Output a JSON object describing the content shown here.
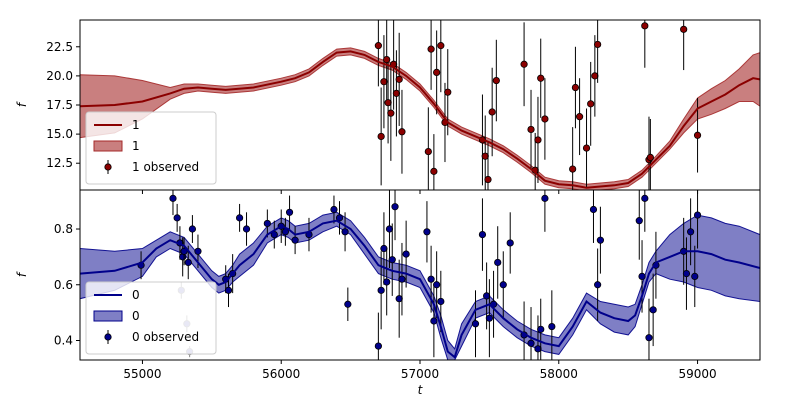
{
  "chart_data": [
    {
      "type": "line",
      "panel": "top",
      "xlabel": "",
      "ylabel": "f",
      "xlim": [
        54550,
        59450
      ],
      "ylim": [
        10.2,
        24.8
      ],
      "yticks": [
        12.5,
        15.0,
        17.5,
        20.0,
        22.5
      ],
      "ytick_labels": [
        "12.5",
        "15.0",
        "17.5",
        "20.0",
        "22.5"
      ],
      "xticks": [
        55000,
        56000,
        57000,
        58000,
        59000
      ],
      "grid": false,
      "legend_position": "lower-left",
      "legend": [
        "1",
        "1",
        "1 observed"
      ],
      "colors": {
        "line": "#8b0000",
        "band": "#a52a2a",
        "band_alpha": 0.6,
        "marker": "#8b0000"
      },
      "series": [
        {
          "name": "1",
          "role": "model",
          "x": [
            54550,
            54800,
            55000,
            55200,
            55300,
            55400,
            55500,
            55600,
            55800,
            56000,
            56100,
            56200,
            56300,
            56400,
            56500,
            56600,
            56700,
            56800,
            56900,
            57000,
            57100,
            57200,
            57300,
            57400,
            57500,
            57600,
            57700,
            57800,
            57900,
            58000,
            58100,
            58200,
            58300,
            58400,
            58500,
            58600,
            58700,
            58800,
            58900,
            59000,
            59100,
            59200,
            59300,
            59400,
            59450
          ],
          "y": [
            17.4,
            17.5,
            17.8,
            18.5,
            18.9,
            19.0,
            18.9,
            18.8,
            19.0,
            19.5,
            19.8,
            20.3,
            21.2,
            22.0,
            22.1,
            21.8,
            21.2,
            20.8,
            20.0,
            19.0,
            17.6,
            16.0,
            15.3,
            14.8,
            14.3,
            13.7,
            12.9,
            12.0,
            11.0,
            10.7,
            10.6,
            10.4,
            10.5,
            10.6,
            10.8,
            11.6,
            12.8,
            14.0,
            15.7,
            17.2,
            17.8,
            18.4,
            19.2,
            19.8,
            19.7
          ],
          "lower": [
            14.7,
            15.1,
            16.3,
            18.0,
            18.5,
            18.7,
            18.6,
            18.5,
            18.7,
            19.2,
            19.5,
            20.0,
            20.9,
            21.7,
            21.8,
            21.5,
            20.9,
            20.5,
            19.7,
            18.7,
            17.3,
            15.7,
            15.0,
            14.5,
            14.0,
            13.4,
            12.6,
            11.7,
            10.7,
            10.4,
            10.3,
            10.1,
            10.2,
            10.3,
            10.5,
            11.3,
            12.5,
            13.7,
            15.1,
            16.3,
            16.7,
            17.2,
            17.8,
            17.8,
            17.4
          ],
          "upper": [
            20.1,
            20.0,
            19.6,
            19.0,
            19.3,
            19.3,
            19.2,
            19.1,
            19.3,
            19.8,
            20.1,
            20.6,
            21.5,
            22.3,
            22.4,
            22.1,
            21.5,
            21.1,
            20.3,
            19.3,
            17.9,
            16.3,
            15.6,
            15.1,
            14.6,
            14.0,
            13.2,
            12.3,
            11.3,
            11.0,
            10.9,
            10.7,
            10.8,
            10.9,
            11.1,
            11.9,
            13.1,
            14.4,
            16.3,
            18.1,
            18.9,
            19.6,
            20.6,
            21.8,
            22.0
          ]
        },
        {
          "name": "1 observed",
          "role": "observed",
          "x": [
            56700,
            56720,
            56740,
            56760,
            56770,
            56790,
            56810,
            56830,
            56850,
            56870,
            57060,
            57080,
            57100,
            57120,
            57150,
            57180,
            57200,
            57450,
            57470,
            57490,
            57520,
            57550,
            57750,
            57800,
            57830,
            57850,
            57870,
            57900,
            58100,
            58120,
            58150,
            58200,
            58230,
            58260,
            58280,
            58620,
            58650,
            58660,
            58900,
            59000
          ],
          "y": [
            22.6,
            14.8,
            19.5,
            21.4,
            17.7,
            16.8,
            21.0,
            18.5,
            19.7,
            15.2,
            13.5,
            22.3,
            11.8,
            20.3,
            22.6,
            16.0,
            18.6,
            14.5,
            13.1,
            11.1,
            16.9,
            19.6,
            21.0,
            15.4,
            11.9,
            14.5,
            19.8,
            16.3,
            12.0,
            19.0,
            16.5,
            13.8,
            17.6,
            20.0,
            22.7,
            24.3,
            12.8,
            13.0,
            24.0,
            14.9
          ],
          "yerr": [
            3.5,
            4.2,
            4.0,
            3.8,
            3.5,
            4.1,
            3.9,
            3.7,
            4.0,
            3.6,
            3.8,
            3.5,
            3.2,
            3.6,
            4.0,
            3.4,
            3.7,
            3.9,
            3.5,
            3.2,
            3.8,
            3.5,
            3.6,
            3.4,
            3.2,
            3.7,
            3.4,
            3.5,
            3.6,
            3.5,
            3.3,
            3.4,
            3.6,
            3.5,
            3.3,
            3.6,
            3.7,
            3.3,
            3.5,
            3.2
          ]
        }
      ]
    },
    {
      "type": "line",
      "panel": "bottom",
      "xlabel": "t",
      "ylabel": "f",
      "xlim": [
        54550,
        59450
      ],
      "ylim": [
        0.33,
        0.94
      ],
      "yticks": [
        0.4,
        0.6,
        0.8
      ],
      "ytick_labels": [
        "0.4",
        "0.6",
        "0.8"
      ],
      "xticks": [
        55000,
        56000,
        57000,
        58000,
        59000
      ],
      "xtick_labels": [
        "55000",
        "56000",
        "57000",
        "58000",
        "59000"
      ],
      "grid": false,
      "legend_position": "lower-left",
      "legend": [
        "0",
        "0",
        "0 observed"
      ],
      "colors": {
        "line": "#00008b",
        "band": "#00008b",
        "band_alpha": 0.5,
        "marker": "#00008b"
      },
      "series": [
        {
          "name": "0",
          "role": "model",
          "x": [
            54550,
            54800,
            55000,
            55100,
            55200,
            55300,
            55400,
            55500,
            55550,
            55600,
            55650,
            55700,
            55800,
            55900,
            56000,
            56050,
            56100,
            56200,
            56300,
            56400,
            56500,
            56600,
            56700,
            56800,
            56900,
            57000,
            57100,
            57150,
            57200,
            57250,
            57300,
            57400,
            57500,
            57600,
            57700,
            57800,
            57900,
            58000,
            58100,
            58200,
            58300,
            58400,
            58500,
            58550,
            58600,
            58650,
            58700,
            58800,
            58900,
            59000,
            59100,
            59200,
            59300,
            59450
          ],
          "y": [
            0.64,
            0.65,
            0.68,
            0.73,
            0.76,
            0.74,
            0.68,
            0.62,
            0.6,
            0.61,
            0.64,
            0.67,
            0.71,
            0.78,
            0.81,
            0.8,
            0.78,
            0.79,
            0.82,
            0.83,
            0.8,
            0.74,
            0.67,
            0.65,
            0.64,
            0.62,
            0.53,
            0.45,
            0.36,
            0.34,
            0.42,
            0.51,
            0.53,
            0.48,
            0.44,
            0.41,
            0.39,
            0.38,
            0.45,
            0.54,
            0.5,
            0.48,
            0.47,
            0.49,
            0.56,
            0.64,
            0.68,
            0.7,
            0.72,
            0.72,
            0.71,
            0.69,
            0.68,
            0.66
          ],
          "lower": [
            0.55,
            0.58,
            0.63,
            0.7,
            0.73,
            0.71,
            0.65,
            0.59,
            0.57,
            0.58,
            0.61,
            0.63,
            0.67,
            0.75,
            0.78,
            0.77,
            0.75,
            0.76,
            0.79,
            0.81,
            0.78,
            0.71,
            0.64,
            0.62,
            0.61,
            0.59,
            0.5,
            0.41,
            0.33,
            0.33,
            0.38,
            0.48,
            0.5,
            0.45,
            0.41,
            0.38,
            0.36,
            0.35,
            0.42,
            0.51,
            0.46,
            0.43,
            0.42,
            0.45,
            0.53,
            0.61,
            0.64,
            0.62,
            0.61,
            0.59,
            0.58,
            0.56,
            0.55,
            0.54
          ],
          "upper": [
            0.73,
            0.72,
            0.73,
            0.76,
            0.79,
            0.77,
            0.71,
            0.65,
            0.63,
            0.64,
            0.67,
            0.71,
            0.75,
            0.81,
            0.84,
            0.83,
            0.81,
            0.82,
            0.85,
            0.86,
            0.83,
            0.77,
            0.7,
            0.68,
            0.67,
            0.65,
            0.56,
            0.49,
            0.4,
            0.37,
            0.46,
            0.54,
            0.56,
            0.51,
            0.47,
            0.44,
            0.42,
            0.41,
            0.48,
            0.57,
            0.54,
            0.53,
            0.52,
            0.53,
            0.6,
            0.68,
            0.72,
            0.78,
            0.82,
            0.85,
            0.84,
            0.82,
            0.81,
            0.78
          ]
        },
        {
          "name": "0 observed",
          "role": "observed",
          "x": [
            54990,
            55220,
            55250,
            55270,
            55290,
            55300,
            55330,
            55360,
            55400,
            55600,
            55620,
            55650,
            55700,
            55750,
            55900,
            55950,
            56000,
            56030,
            56060,
            56100,
            56200,
            56380,
            56420,
            56460,
            56480,
            56700,
            56720,
            56740,
            56760,
            56780,
            56800,
            56820,
            56850,
            56870,
            56900,
            57050,
            57080,
            57100,
            57120,
            57150,
            57400,
            57450,
            57480,
            57500,
            57530,
            57560,
            57600,
            57650,
            57750,
            57800,
            57850,
            57870,
            57900,
            57950,
            58250,
            58280,
            58300,
            58580,
            58600,
            58620,
            58650,
            58680,
            58700,
            58900,
            58920,
            58950,
            58980,
            59000
          ],
          "y": [
            0.67,
            0.91,
            0.84,
            0.75,
            0.7,
            0.72,
            0.68,
            0.8,
            0.72,
            0.62,
            0.58,
            0.64,
            0.84,
            0.8,
            0.82,
            0.78,
            0.81,
            0.79,
            0.86,
            0.76,
            0.78,
            0.87,
            0.84,
            0.79,
            0.53,
            0.38,
            0.58,
            0.73,
            0.61,
            0.8,
            0.69,
            0.88,
            0.55,
            0.62,
            0.71,
            0.79,
            0.62,
            0.47,
            0.6,
            0.54,
            0.46,
            0.78,
            0.56,
            0.48,
            0.53,
            0.68,
            0.6,
            0.75,
            0.42,
            0.39,
            0.37,
            0.44,
            0.91,
            0.45,
            0.87,
            0.6,
            0.76,
            0.83,
            0.63,
            0.91,
            0.41,
            0.51,
            0.67,
            0.72,
            0.64,
            0.79,
            0.63,
            0.85
          ],
          "yerr": [
            0.05,
            0.06,
            0.05,
            0.06,
            0.07,
            0.05,
            0.06,
            0.05,
            0.06,
            0.05,
            0.06,
            0.07,
            0.05,
            0.06,
            0.05,
            0.05,
            0.06,
            0.05,
            0.06,
            0.05,
            0.06,
            0.05,
            0.06,
            0.07,
            0.06,
            0.12,
            0.14,
            0.13,
            0.12,
            0.14,
            0.13,
            0.12,
            0.14,
            0.13,
            0.12,
            0.11,
            0.12,
            0.13,
            0.12,
            0.11,
            0.12,
            0.13,
            0.12,
            0.14,
            0.12,
            0.13,
            0.12,
            0.11,
            0.12,
            0.13,
            0.12,
            0.11,
            0.12,
            0.13,
            0.12,
            0.13,
            0.12,
            0.14,
            0.13,
            0.12,
            0.14,
            0.13,
            0.12,
            0.12,
            0.13,
            0.12,
            0.11,
            0.12
          ]
        },
        {
          "name": "0 observed (faded)",
          "role": "observed-faded",
          "x": [
            55280,
            55320,
            55340
          ],
          "y": [
            0.58,
            0.46,
            0.36
          ],
          "yerr": [
            0.03,
            0.03,
            0.02
          ]
        }
      ]
    }
  ]
}
